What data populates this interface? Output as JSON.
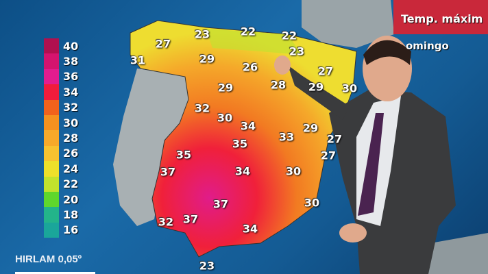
{
  "header": {
    "title": "Temp. máxim",
    "day": "omingo"
  },
  "model_label": "HIRLAM 0,05º",
  "legend": {
    "items": [
      {
        "label": "40",
        "color": "#b0104f"
      },
      {
        "label": "38",
        "color": "#d4146e"
      },
      {
        "label": "36",
        "color": "#e31c8e"
      },
      {
        "label": "34",
        "color": "#f01c3c"
      },
      {
        "label": "32",
        "color": "#f2621c"
      },
      {
        "label": "30",
        "color": "#f5911f"
      },
      {
        "label": "28",
        "color": "#f7a92a"
      },
      {
        "label": "26",
        "color": "#f7c230"
      },
      {
        "label": "24",
        "color": "#eee02a"
      },
      {
        "label": "22",
        "color": "#c2e22c"
      },
      {
        "label": "20",
        "color": "#5fd72c"
      },
      {
        "label": "18",
        "color": "#23b48a"
      },
      {
        "label": "16",
        "color": "#1aa69a"
      }
    ]
  },
  "map_temps": [
    "27",
    "23",
    "22",
    "22",
    "23",
    "31",
    "29",
    "26",
    "27",
    "28",
    "29",
    "30",
    "29",
    "32",
    "30",
    "34",
    "29",
    "33",
    "35",
    "27",
    "35",
    "27",
    "37",
    "34",
    "30",
    "30",
    "37",
    "32",
    "37",
    "34",
    "23"
  ]
}
